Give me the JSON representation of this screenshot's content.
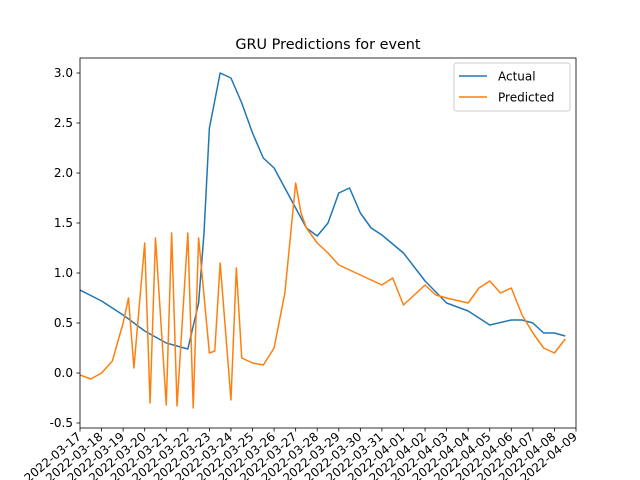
{
  "chart_data": {
    "type": "line",
    "title": "GRU Predictions for event",
    "xlabel": "",
    "ylabel": "",
    "xlim": [
      "2022-03-17",
      "2022-04-09"
    ],
    "ylim": [
      -0.55,
      3.15
    ],
    "y_ticks": [
      -0.5,
      0.0,
      0.5,
      1.0,
      1.5,
      2.0,
      2.5,
      3.0
    ],
    "x_ticks": [
      "2022-03-17",
      "2022-03-18",
      "2022-03-19",
      "2022-03-20",
      "2022-03-21",
      "2022-03-22",
      "2022-03-23",
      "2022-03-24",
      "2022-03-25",
      "2022-03-26",
      "2022-03-27",
      "2022-03-28",
      "2022-03-29",
      "2022-03-30",
      "2022-03-31",
      "2022-04-01",
      "2022-04-02",
      "2022-04-03",
      "2022-04-04",
      "2022-04-05",
      "2022-04-06",
      "2022-04-07",
      "2022-04-08",
      "2022-04-09"
    ],
    "grid": false,
    "legend": "top-right",
    "colors": {
      "actual": "#1f77b4",
      "predicted": "#ff7f0e"
    },
    "series": [
      {
        "name": "Actual",
        "x": [
          "2022-03-17",
          "2022-03-18",
          "2022-03-19",
          "2022-03-20",
          "2022-03-21",
          "2022-03-22",
          "2022-03-22 12:00",
          "2022-03-22 18:00",
          "2022-03-23",
          "2022-03-23 12:00",
          "2022-03-24",
          "2022-03-24 12:00",
          "2022-03-25",
          "2022-03-25 12:00",
          "2022-03-26",
          "2022-03-26 12:00",
          "2022-03-27",
          "2022-03-27 12:00",
          "2022-03-28",
          "2022-03-28 12:00",
          "2022-03-29",
          "2022-03-29 12:00",
          "2022-03-30",
          "2022-03-30 12:00",
          "2022-03-31",
          "2022-04-01",
          "2022-04-02",
          "2022-04-03",
          "2022-04-04",
          "2022-04-04 12:00",
          "2022-04-05",
          "2022-04-06",
          "2022-04-06 12:00",
          "2022-04-07",
          "2022-04-07 12:00",
          "2022-04-08",
          "2022-04-08 12:00"
        ],
        "y": [
          0.83,
          0.72,
          0.58,
          0.42,
          0.3,
          0.24,
          0.7,
          1.4,
          2.45,
          3.0,
          2.95,
          2.7,
          2.4,
          2.15,
          2.05,
          1.85,
          1.65,
          1.45,
          1.37,
          1.5,
          1.8,
          1.85,
          1.6,
          1.45,
          1.38,
          1.2,
          0.92,
          0.7,
          0.62,
          0.55,
          0.48,
          0.53,
          0.53,
          0.5,
          0.4,
          0.4,
          0.37
        ]
      },
      {
        "name": "Predicted",
        "x": [
          "2022-03-17",
          "2022-03-17 12:00",
          "2022-03-18",
          "2022-03-18 12:00",
          "2022-03-19",
          "2022-03-19 06:00",
          "2022-03-19 12:00",
          "2022-03-20",
          "2022-03-20 06:00",
          "2022-03-20 12:00",
          "2022-03-21",
          "2022-03-21 06:00",
          "2022-03-21 12:00",
          "2022-03-22",
          "2022-03-22 06:00",
          "2022-03-22 12:00",
          "2022-03-23",
          "2022-03-23 06:00",
          "2022-03-23 12:00",
          "2022-03-24",
          "2022-03-24 06:00",
          "2022-03-24 12:00",
          "2022-03-25",
          "2022-03-25 12:00",
          "2022-03-26",
          "2022-03-26 12:00",
          "2022-03-27",
          "2022-03-27 06:00",
          "2022-03-27 12:00",
          "2022-03-28",
          "2022-03-28 12:00",
          "2022-03-29",
          "2022-03-30",
          "2022-03-31",
          "2022-03-31 12:00",
          "2022-04-01",
          "2022-04-02",
          "2022-04-02 12:00",
          "2022-04-03",
          "2022-04-04",
          "2022-04-04 12:00",
          "2022-04-05",
          "2022-04-05 12:00",
          "2022-04-06",
          "2022-04-06 12:00",
          "2022-04-07",
          "2022-04-07 12:00",
          "2022-04-08",
          "2022-04-08 12:00"
        ],
        "y": [
          -0.02,
          -0.06,
          0.0,
          0.12,
          0.5,
          0.75,
          0.05,
          1.3,
          -0.3,
          1.35,
          -0.32,
          1.4,
          -0.33,
          1.4,
          -0.35,
          1.35,
          0.2,
          0.22,
          1.1,
          -0.27,
          1.05,
          0.15,
          0.1,
          0.08,
          0.25,
          0.8,
          1.9,
          1.6,
          1.45,
          1.3,
          1.2,
          1.08,
          0.98,
          0.88,
          0.95,
          0.68,
          0.88,
          0.78,
          0.75,
          0.7,
          0.85,
          0.92,
          0.8,
          0.85,
          0.58,
          0.4,
          0.25,
          0.2,
          0.34
        ]
      }
    ]
  }
}
